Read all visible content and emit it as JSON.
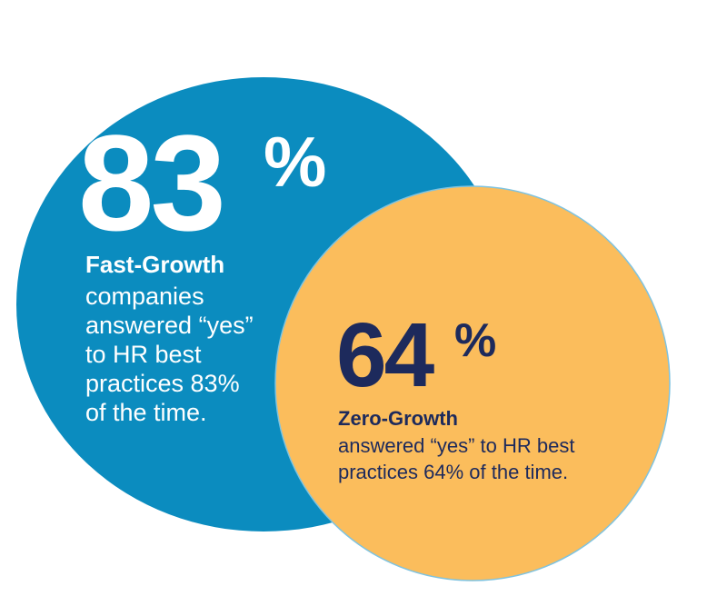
{
  "circles": [
    {
      "stat": "83",
      "unit": "%",
      "heading": "Fast-Growth",
      "lines": [
        "companies",
        "answered “yes”",
        "to HR best",
        "practices 83%",
        "of the time."
      ]
    },
    {
      "stat": "64",
      "unit": "%",
      "heading": "Zero-Growth",
      "lines": [
        "answered “yes” to HR best",
        "practices 64% of the time."
      ]
    }
  ]
}
